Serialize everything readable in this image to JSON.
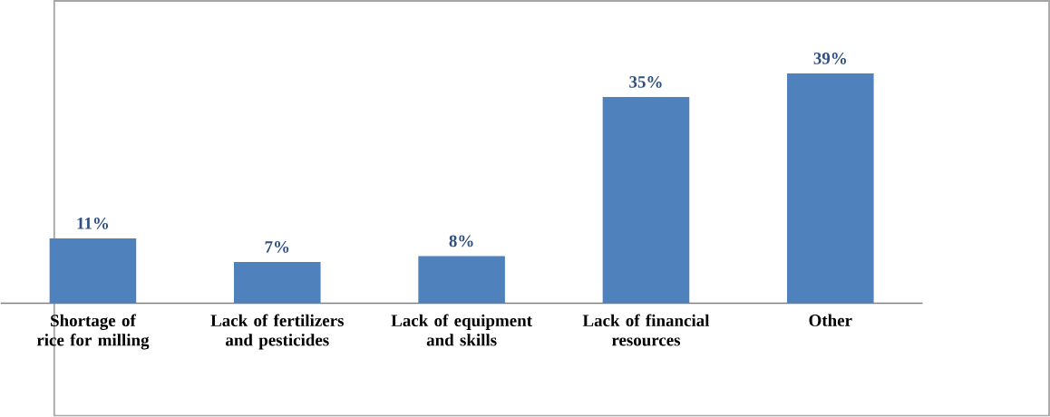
{
  "chart_data": {
    "type": "bar",
    "categories": [
      "Shortage of rice for milling",
      "Lack of fertilizers and pesticides",
      "Lack of equipment and skills",
      "Lack of financial resources",
      "Other"
    ],
    "values": [
      11,
      7,
      8,
      35,
      39
    ],
    "value_labels": [
      "11%",
      "7%",
      "8%",
      "35%",
      "39%"
    ],
    "color": "#4f81bd"
  }
}
